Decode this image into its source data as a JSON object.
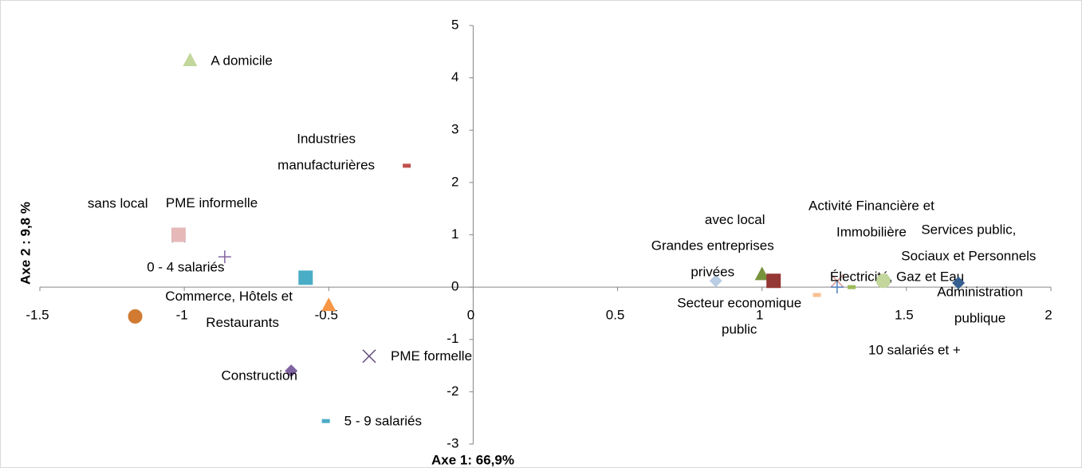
{
  "chart_data": {
    "type": "scatter",
    "xlabel": "Axe 1: 66,9%",
    "ylabel": "Axe 2 : 9,8 %",
    "xlim": [
      -1.5,
      2
    ],
    "ylim": [
      -3,
      5
    ],
    "xticks": [
      -1.5,
      -1,
      -0.5,
      0,
      0.5,
      1,
      1.5,
      2
    ],
    "yticks": [
      -3,
      -2,
      -1,
      0,
      1,
      2,
      3,
      4,
      5
    ],
    "points": [
      {
        "label": [
          "A domicile"
        ],
        "x": -0.98,
        "y": 4.33,
        "marker": "triangle",
        "color": "#c3d69b"
      },
      {
        "label": [
          "Industries",
          "manufacturières"
        ],
        "x": -0.23,
        "y": 2.32,
        "marker": "dash",
        "color": "#c0504d"
      },
      {
        "label": [
          "sans local"
        ],
        "x": -1.02,
        "y": 0.98,
        "marker": "x",
        "color": "#31859c"
      },
      {
        "label": [
          "PME informelle"
        ],
        "x": -1.02,
        "y": 1.0,
        "marker": "square",
        "color": "#e6b9b8"
      },
      {
        "label": [
          "0 - 4 salariés"
        ],
        "x": -0.86,
        "y": 0.58,
        "marker": "plus",
        "color": "#8064a2"
      },
      {
        "label": [
          "Commerce, Hôtels et",
          "Restaurants"
        ],
        "x": -0.58,
        "y": 0.18,
        "marker": "square",
        "color": "#4bacc6"
      },
      {
        "label": null,
        "x": -0.5,
        "y": -0.35,
        "marker": "triangle",
        "color": "#f79646"
      },
      {
        "label": null,
        "x": -1.17,
        "y": -0.56,
        "marker": "circle",
        "color": "#d07a32"
      },
      {
        "label": [
          "Construction"
        ],
        "x": -0.63,
        "y": -1.6,
        "marker": "diamond",
        "color": "#8064a2"
      },
      {
        "label": [
          "PME formelle"
        ],
        "x": -0.36,
        "y": -1.32,
        "marker": "x",
        "color": "#604a7b"
      },
      {
        "label": [
          "5 - 9 salariés"
        ],
        "x": -0.51,
        "y": -2.56,
        "marker": "dash",
        "color": "#4bacc6"
      },
      {
        "label": [
          "Grandes entreprises",
          "privées"
        ],
        "x": 0.84,
        "y": 0.12,
        "marker": "diamond",
        "color": "#b9cde5"
      },
      {
        "label": [
          "avec local"
        ],
        "x": 1.0,
        "y": 0.24,
        "marker": "triangle",
        "color": "#77933c"
      },
      {
        "label": [
          "Secteur economique",
          "public"
        ],
        "x": 1.04,
        "y": 0.12,
        "marker": "square",
        "color": "#953735"
      },
      {
        "label": null,
        "x": 1.19,
        "y": -0.15,
        "marker": "dash",
        "color": "#fac090"
      },
      {
        "label": [
          "Activité Financière et",
          "Immobilière"
        ],
        "x": 1.26,
        "y": 0.12,
        "marker": "x",
        "color": "#d99694"
      },
      {
        "label": [
          "10 salariés et +"
        ],
        "x": 1.26,
        "y": 0.0,
        "marker": "plus",
        "color": "#4f81bd"
      },
      {
        "label": [
          "Électricité, Gaz et Eau"
        ],
        "x": 1.31,
        "y": 0.0,
        "marker": "dash",
        "color": "#9bbb59"
      },
      {
        "label": [
          "Services public,",
          "Sociaux et Personnels"
        ],
        "x": 1.42,
        "y": 0.12,
        "marker": "circle",
        "color": "#c3d69b"
      },
      {
        "label": [
          "Administration",
          "publique"
        ],
        "x": 1.68,
        "y": 0.08,
        "marker": "diamond",
        "color": "#376092"
      }
    ]
  }
}
